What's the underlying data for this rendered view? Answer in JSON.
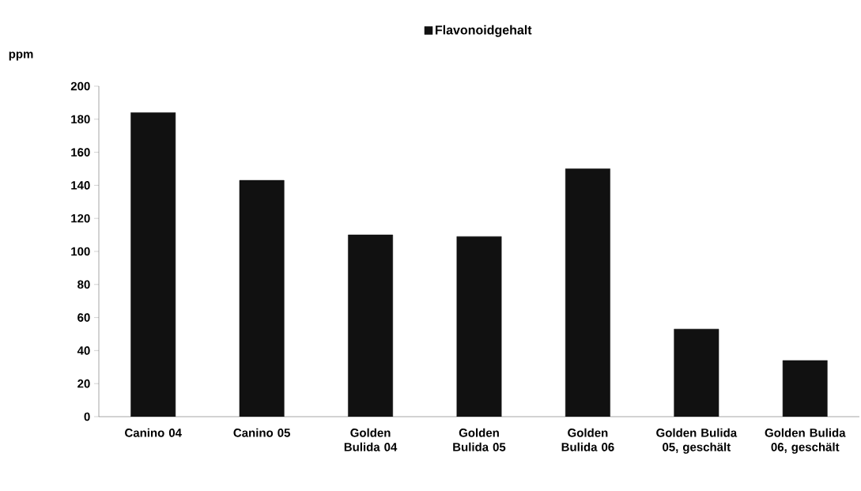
{
  "chart_data": {
    "type": "bar",
    "ylabel": "ppm",
    "categories": [
      "Canino 04",
      "Canino 05",
      "Golden Bulida 04",
      "Golden Bulida 05",
      "Golden Bulida 06",
      "Golden Bulida 05, geschält",
      "Golden Bulida 06, geschält"
    ],
    "series": [
      {
        "name": "Flavonoidgehalt",
        "color": "#111111",
        "values": [
          184,
          143,
          110,
          109,
          150,
          53,
          34
        ]
      }
    ],
    "ylim": [
      0,
      200
    ],
    "yticks": [
      0,
      20,
      40,
      60,
      80,
      100,
      120,
      140,
      160,
      180,
      200
    ],
    "grid": false,
    "legend": "top"
  }
}
